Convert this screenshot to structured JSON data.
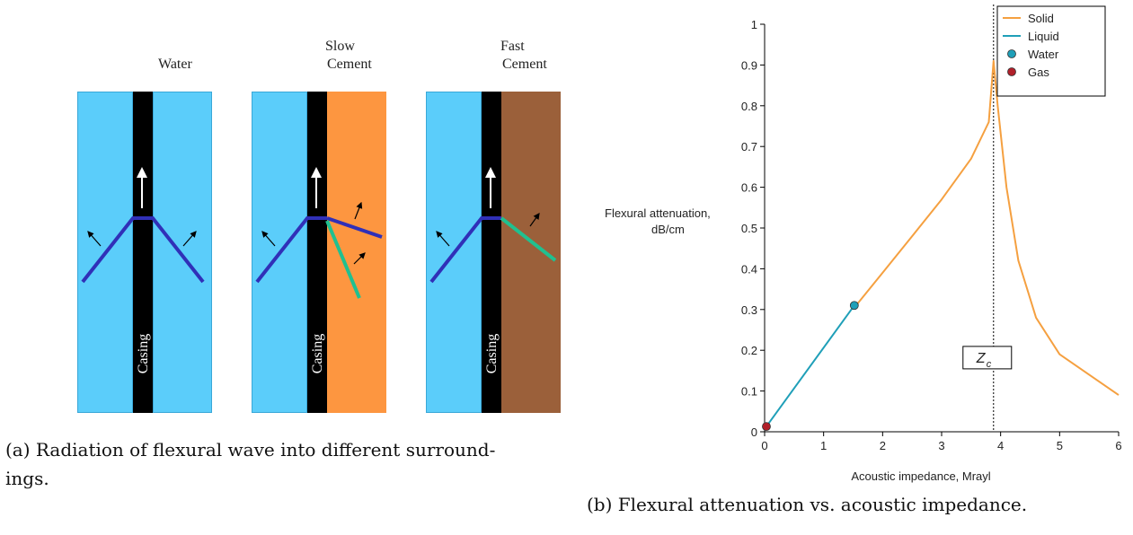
{
  "figure_a": {
    "panels": [
      {
        "title_lines": [
          "Water"
        ],
        "casing_label": "Casing"
      },
      {
        "title_lines": [
          "Slow",
          "Cement"
        ],
        "casing_label": "Casing"
      },
      {
        "title_lines": [
          "Fast",
          "Cement"
        ],
        "casing_label": "Casing"
      }
    ],
    "caption_line1": "(a) Radiation of flexural wave into different surround-",
    "caption_line2": "ings.",
    "colors": {
      "water": "#5bcdfa",
      "casing": "#000000",
      "slow_cement": "#fd9640",
      "fast_cement": "#9b603a",
      "liquid_ray": "#3030b8",
      "solid_ray": "#20c090"
    }
  },
  "figure_b": {
    "caption": "(b) Flexural attenuation vs. acoustic impedance."
  },
  "chart_data": {
    "type": "line",
    "xlabel": "Acoustic impedance, Mrayl",
    "ylabel_lines": [
      "Flexural attenuation,",
      "dB/cm"
    ],
    "xlim": [
      0,
      6
    ],
    "ylim": [
      0,
      1
    ],
    "xticks": [
      "0",
      "1",
      "2",
      "3",
      "4",
      "5",
      "6"
    ],
    "yticks": [
      "0",
      "0.1",
      "0.2",
      "0.3",
      "0.4",
      "0.5",
      "0.6",
      "0.7",
      "0.8",
      "0.9",
      "1"
    ],
    "grid": false,
    "legend_position": "top-right",
    "series": [
      {
        "name": "Solid",
        "color": "#f5a040",
        "x": [
          1.55,
          2.0,
          2.5,
          3.0,
          3.5,
          3.8,
          3.88,
          3.95,
          4.1,
          4.3,
          4.6,
          5.0,
          5.5,
          6.0
        ],
        "y": [
          0.31,
          0.39,
          0.48,
          0.57,
          0.67,
          0.76,
          0.91,
          0.8,
          0.6,
          0.42,
          0.28,
          0.19,
          0.14,
          0.09
        ]
      },
      {
        "name": "Liquid",
        "color": "#1f9fb8",
        "x": [
          0.03,
          1.52
        ],
        "y": [
          0.013,
          0.31
        ]
      },
      {
        "name": "Water",
        "color": "#1f9fb8",
        "marker": "circle",
        "x": [
          1.52
        ],
        "y": [
          0.31
        ]
      },
      {
        "name": "Gas",
        "color": "#b0202a",
        "marker": "circle",
        "x": [
          0.03
        ],
        "y": [
          0.013
        ]
      }
    ],
    "annotations": [
      {
        "type": "vline",
        "x": 3.88,
        "style": "dotted"
      },
      {
        "text": "Z",
        "subscript": "c",
        "x": 3.88,
        "y": 0.15
      }
    ]
  }
}
